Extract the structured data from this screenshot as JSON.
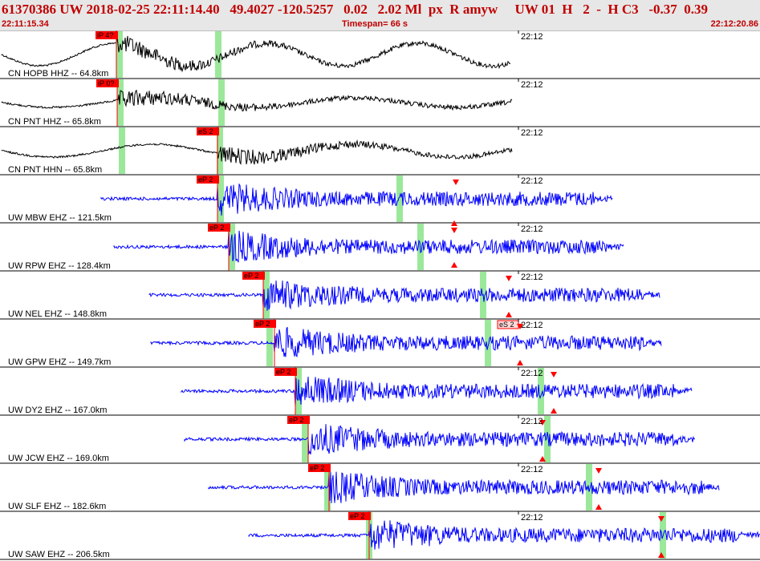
{
  "header": {
    "title": "61370386 UW 2018-02-25 22:11:14.40   49.4027 -120.5257   0.02   2.02 Ml  px  R amyw     UW 01  H   2  -  H C3   -0.37  0.39",
    "start_time": "22:11:15.34",
    "timespan": "Timespan=  66 s",
    "end_time": "22:12:20.86"
  },
  "colors": {
    "broadband": "#000000",
    "shortperiod": "#0000ff",
    "pick": "#ff0000",
    "window": "#9be89b",
    "title": "#c00000"
  },
  "tick_label": "22:12",
  "traces": [
    {
      "label": "CN HOPB HHZ -- 64.8km",
      "color": "black",
      "pick": "iP 4?",
      "s_pick": ""
    },
    {
      "label": "CN PNT HHZ -- 65.8km",
      "color": "black",
      "pick": "iP 0?",
      "s_pick": ""
    },
    {
      "label": "CN PNT HHN -- 65.8km",
      "color": "black",
      "pick": "eS 2",
      "s_pick": ""
    },
    {
      "label": "UW MBW EHZ -- 121.5km",
      "color": "blue",
      "pick": "eP 2",
      "s_pick": ""
    },
    {
      "label": "UW RPW EHZ -- 128.4km",
      "color": "blue",
      "pick": "eP 2",
      "s_pick": ""
    },
    {
      "label": "UW NEL EHZ -- 148.8km",
      "color": "blue",
      "pick": "eP 2",
      "s_pick": ""
    },
    {
      "label": "UW GPW EHZ -- 149.7km",
      "color": "blue",
      "pick": "eP 2",
      "s_pick": "eS 2"
    },
    {
      "label": "UW DY2 EHZ -- 167.0km",
      "color": "blue",
      "pick": "eP 2",
      "s_pick": ""
    },
    {
      "label": "UW JCW EHZ -- 169.0km",
      "color": "blue",
      "pick": "eP 2",
      "s_pick": ""
    },
    {
      "label": "UW SLF EHZ -- 182.6km",
      "color": "blue",
      "pick": "eP 2",
      "s_pick": ""
    },
    {
      "label": "UW SAW EHZ -- 206.5km",
      "color": "blue",
      "pick": "eP 2",
      "s_pick": ""
    }
  ]
}
